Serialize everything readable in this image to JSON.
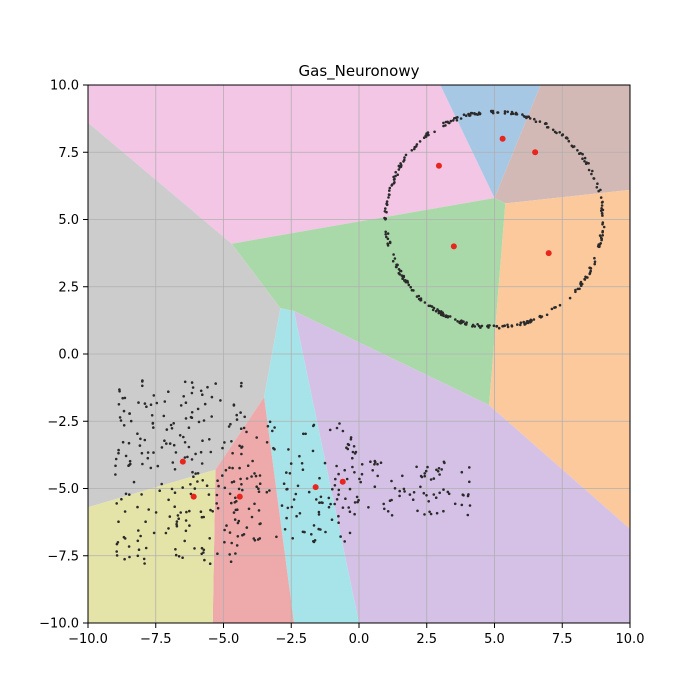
{
  "chart_data": {
    "type": "scatter",
    "title": "Gas_Neuronowy",
    "xlabel": "",
    "ylabel": "",
    "xlim": [
      -10,
      10
    ],
    "ylim": [
      -10,
      10
    ],
    "grid": true,
    "xticks": [
      -10.0,
      -7.5,
      -5.0,
      -2.5,
      0.0,
      2.5,
      5.0,
      7.5,
      10.0
    ],
    "yticks": [
      -10.0,
      -7.5,
      -5.0,
      -2.5,
      0.0,
      2.5,
      5.0,
      7.5,
      10.0
    ],
    "xtick_labels": [
      "−10.0",
      "−7.5",
      "−5.0",
      "−2.5",
      "0.0",
      "2.5",
      "5.0",
      "7.5",
      "10.0"
    ],
    "ytick_labels": [
      "−10.0",
      "−7.5",
      "−5.0",
      "−2.5",
      "0.0",
      "2.5",
      "5.0",
      "7.5",
      "10.0"
    ],
    "regions": [
      {
        "color": "#f3c6e5",
        "polygon": [
          [
            -10,
            10
          ],
          [
            3,
            10
          ],
          [
            5,
            5.8
          ],
          [
            -4.7,
            4.1
          ],
          [
            -10,
            8.6
          ]
        ]
      },
      {
        "color": "#a7c8e4",
        "polygon": [
          [
            3,
            10
          ],
          [
            6.7,
            10
          ],
          [
            5,
            5.8
          ]
        ]
      },
      {
        "color": "#d2b9b5",
        "polygon": [
          [
            6.7,
            10
          ],
          [
            10,
            10
          ],
          [
            10,
            6.1
          ],
          [
            5.4,
            5.6
          ],
          [
            5,
            5.8
          ]
        ]
      },
      {
        "color": "#fcc99d",
        "polygon": [
          [
            10,
            6.1
          ],
          [
            10,
            -6.5
          ],
          [
            4.8,
            -1.9
          ],
          [
            5.4,
            5.6
          ]
        ]
      },
      {
        "color": "#aad9a9",
        "polygon": [
          [
            -4.7,
            4.1
          ],
          [
            5,
            5.8
          ],
          [
            5.4,
            5.6
          ],
          [
            4.8,
            -1.9
          ],
          [
            -2.4,
            1.6
          ],
          [
            -2.9,
            1.7
          ]
        ]
      },
      {
        "color": "#cccccc",
        "polygon": [
          [
            -10,
            8.6
          ],
          [
            -4.7,
            4.1
          ],
          [
            -2.9,
            1.7
          ],
          [
            -3.5,
            -1.6
          ],
          [
            -5.3,
            -4.3
          ],
          [
            -10,
            -5.7
          ]
        ]
      },
      {
        "color": "#d4c1e5",
        "polygon": [
          [
            -2.4,
            1.6
          ],
          [
            4.8,
            -1.9
          ],
          [
            10,
            -6.5
          ],
          [
            10,
            -10
          ],
          [
            0,
            -10
          ]
        ]
      },
      {
        "color": "#a7e4ea",
        "polygon": [
          [
            -2.9,
            1.7
          ],
          [
            -2.4,
            1.6
          ],
          [
            0,
            -10
          ],
          [
            -2.4,
            -10
          ],
          [
            -3.5,
            -1.6
          ]
        ]
      },
      {
        "color": "#eeaaaa",
        "polygon": [
          [
            -3.5,
            -1.6
          ],
          [
            -2.4,
            -10
          ],
          [
            -5.4,
            -10
          ],
          [
            -5.3,
            -4.3
          ]
        ]
      },
      {
        "color": "#e4e4a9",
        "polygon": [
          [
            -10,
            -5.7
          ],
          [
            -5.3,
            -4.3
          ],
          [
            -5.4,
            -10
          ],
          [
            -10,
            -10
          ]
        ]
      }
    ],
    "neurons": [
      {
        "x": 5.3,
        "y": 8.0
      },
      {
        "x": 6.5,
        "y": 7.5
      },
      {
        "x": 2.95,
        "y": 7.0
      },
      {
        "x": 3.5,
        "y": 4.0
      },
      {
        "x": 7.0,
        "y": 3.75
      },
      {
        "x": -6.5,
        "y": -4.0
      },
      {
        "x": -6.1,
        "y": -5.3
      },
      {
        "x": -4.4,
        "y": -5.3
      },
      {
        "x": -1.6,
        "y": -4.95
      },
      {
        "x": -0.6,
        "y": -4.75
      }
    ],
    "circle_cluster": {
      "center": [
        5,
        5
      ],
      "radius": 4,
      "count": 320
    },
    "blob_clusters": [
      {
        "x_range": [
          -9.0,
          -4.2
        ],
        "y_range": [
          -7.8,
          -0.8
        ],
        "count": 230
      },
      {
        "x_range": [
          -4.5,
          0.0
        ],
        "y_range": [
          -7.0,
          -2.5
        ],
        "count": 120
      },
      {
        "x_range": [
          -1.5,
          4.1
        ],
        "y_range": [
          -6.0,
          -3.8
        ],
        "count": 90
      }
    ],
    "colors": {
      "point": "#2a2a2a",
      "neuron": "#e8261e",
      "grid": "#b0b0b0"
    }
  }
}
